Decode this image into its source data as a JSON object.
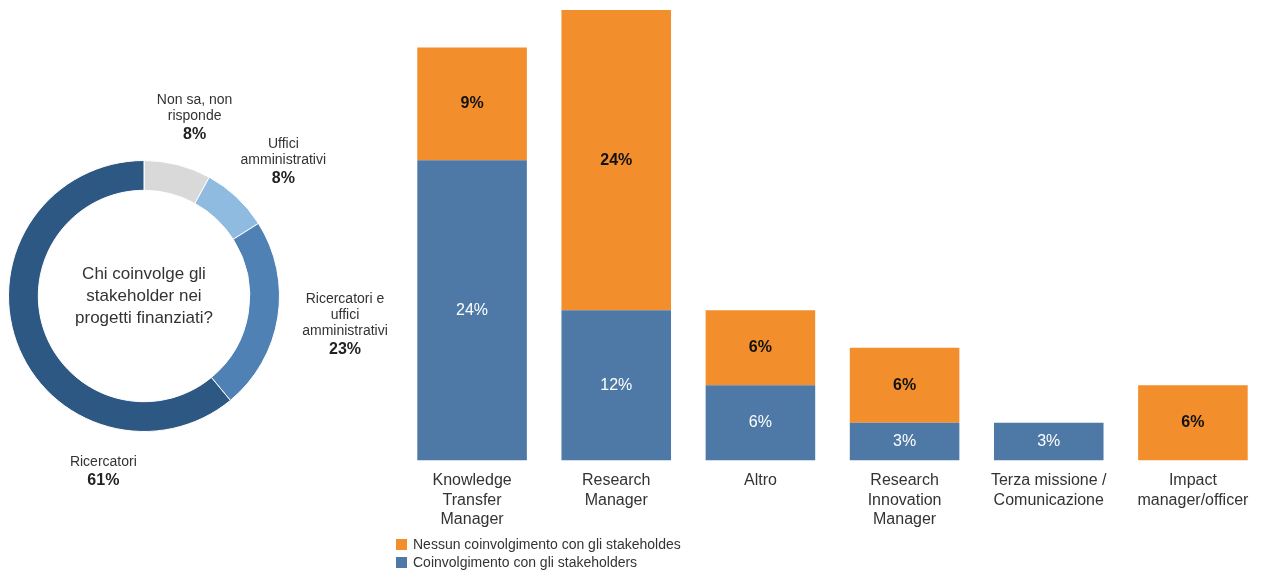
{
  "chart_data": [
    {
      "type": "donut",
      "title": "Chi coinvolge gli stakeholder nei progetti finanziati?",
      "categories": [
        "Non sa, non risponde",
        "Uffici amministrativi",
        "Ricercatori e uffici amministrativi",
        "Ricercatori"
      ],
      "values": [
        8,
        8,
        23,
        61
      ],
      "colors": [
        "#d9d9d9",
        "#8fbbe0",
        "#4f81b5",
        "#2c5883"
      ],
      "value_labels": [
        "8%",
        "8%",
        "23%",
        "61%"
      ],
      "legend": false
    },
    {
      "type": "bar",
      "stacked": true,
      "tick_labels": "x",
      "legend": "bottom left",
      "grid": false,
      "categories": [
        "Knowledge Transfer Manager",
        "Research Manager",
        "Altro",
        "Research Innovation Manager",
        "Terza missione / Comunicazione",
        "Impact manager/officer"
      ],
      "series": [
        {
          "name": "Coinvolgimento con gli stakeholders",
          "color": "#4e79a7",
          "values": [
            24,
            12,
            6,
            3,
            3,
            null
          ],
          "value_labels": [
            "24%",
            "12%",
            "6%",
            "3%",
            "3%",
            null
          ]
        },
        {
          "name": "Nessun coinvolgimento con gli stakeholdes",
          "color": "#f28e2b",
          "values": [
            9,
            24,
            6,
            6,
            null,
            6
          ],
          "value_labels": [
            "9%",
            "24%",
            "6%",
            "6%",
            null,
            "6%"
          ]
        }
      ]
    }
  ]
}
